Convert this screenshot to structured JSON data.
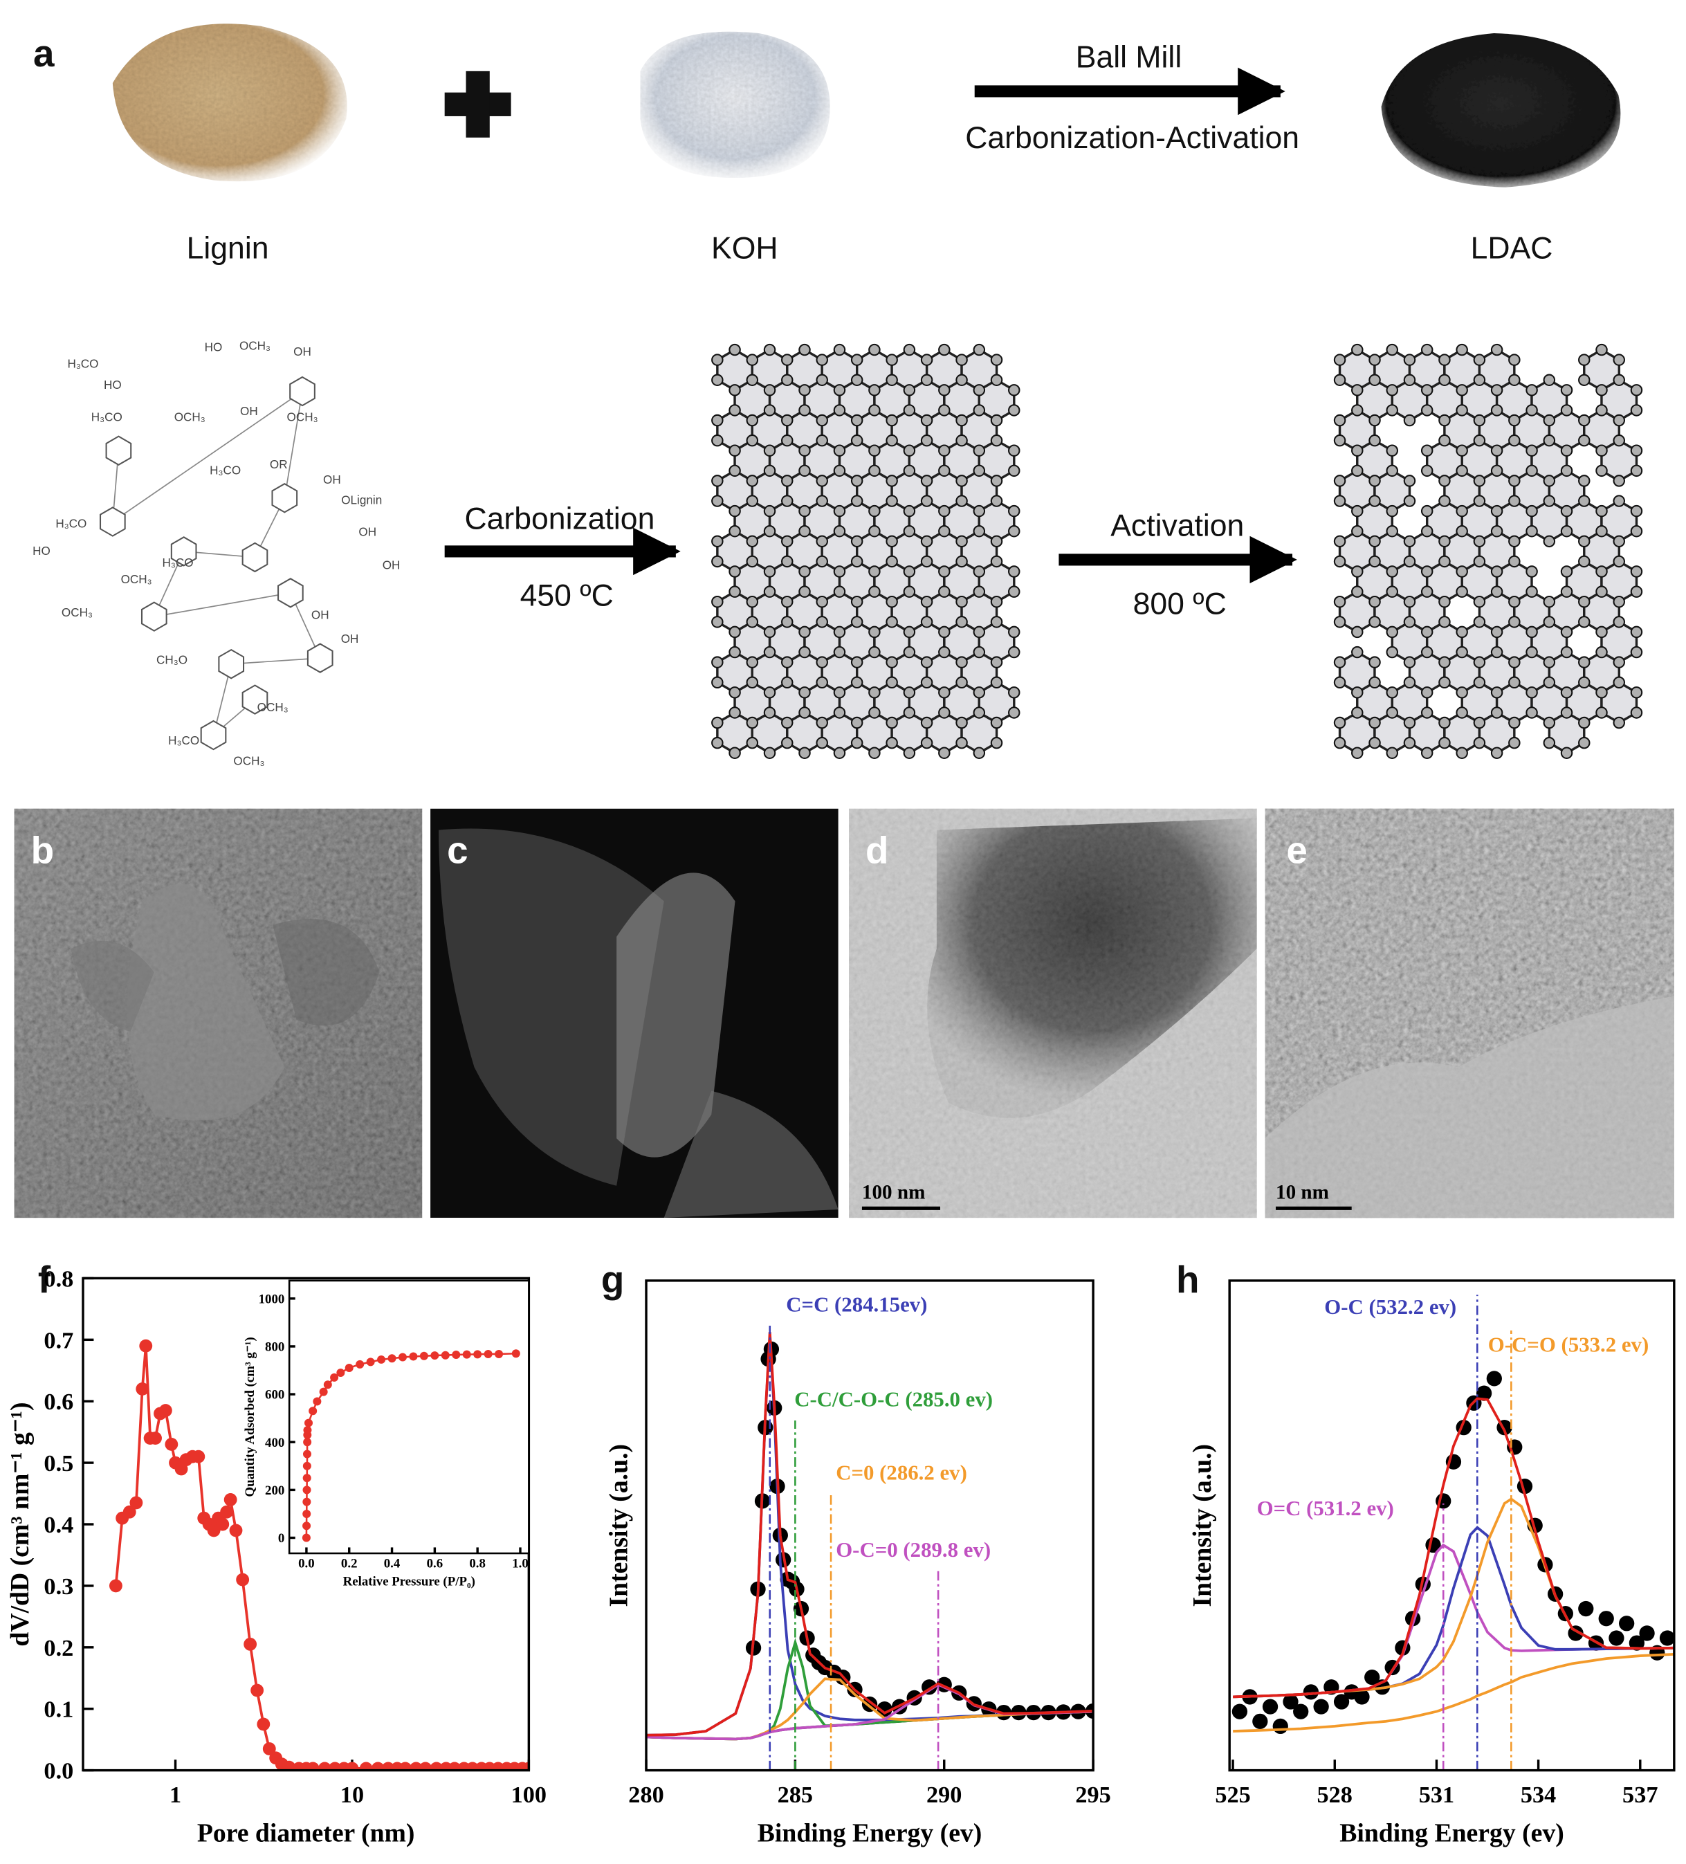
{
  "panel_labels": [
    "a",
    "b",
    "c",
    "d",
    "e",
    "f",
    "g",
    "h"
  ],
  "scheme": {
    "materials": [
      "Lignin",
      "KOH",
      "LDAC"
    ],
    "mill_top": "Ball Mill",
    "mill_bottom": "Carbonization-Activation",
    "carbonization_top": "Carbonization",
    "carbonization_bottom": "450 ºC",
    "activation_top": "Activation",
    "activation_bottom": "800 ºC"
  },
  "lignin_groups": [
    "H₃CO",
    "OCH₃",
    "HO",
    "HO",
    "H₃CO",
    "OH",
    "OCH₃",
    "OH",
    "OCH₃",
    "OR",
    "H₃CO",
    "OH",
    "OLignin",
    "H₃CO",
    "OH",
    "HO",
    "OH",
    "OCH₃",
    "H₃CO",
    "OCH₃",
    "OH",
    "OH",
    "CH₃O",
    "OCH₃",
    "H₃CO",
    "OCH₃"
  ],
  "scale_bars": [
    "100 nm",
    "10 nm"
  ],
  "chart_data": [
    {
      "type": "line",
      "log_x": true,
      "marker": true,
      "xlabel": "Pore diameter (nm)",
      "ylabel": "dV/dD (cm³ nm⁻¹ g⁻¹)",
      "xlim": [
        0.3,
        100
      ],
      "ylim": [
        0,
        0.8
      ],
      "xticks": [
        1,
        10,
        100
      ],
      "yticks": [
        {
          "value": 0,
          "label": "0.0"
        },
        0.1,
        0.2,
        0.3,
        0.4,
        0.5,
        0.6,
        0.7,
        0.8
      ],
      "x": [
        0.46,
        0.5,
        0.55,
        0.6,
        0.65,
        0.68,
        0.72,
        0.77,
        0.82,
        0.88,
        0.95,
        1.0,
        1.08,
        1.15,
        1.25,
        1.35,
        1.45,
        1.55,
        1.65,
        1.75,
        1.85,
        1.95,
        2.05,
        2.2,
        2.4,
        2.65,
        2.9,
        3.15,
        3.4,
        3.7,
        4.0,
        4.4,
        5,
        5.5,
        6,
        7,
        8,
        9,
        10,
        12,
        14,
        16,
        18,
        20,
        23,
        26,
        30,
        34,
        38,
        43,
        48,
        54,
        60,
        67,
        75,
        83,
        92,
        100
      ],
      "series": [
        {
          "color": "#e8332a",
          "values": [
            0.3,
            0.41,
            0.42,
            0.435,
            0.62,
            0.69,
            0.54,
            0.54,
            0.58,
            0.585,
            0.53,
            0.5,
            0.49,
            0.505,
            0.51,
            0.51,
            0.41,
            0.4,
            0.39,
            0.41,
            0.4,
            0.42,
            0.44,
            0.39,
            0.31,
            0.205,
            0.13,
            0.075,
            0.035,
            0.02,
            0.01,
            0.005,
            0.003,
            0.003,
            0.003,
            0.003,
            0.003,
            0.003,
            0.003,
            0.003,
            0.003,
            0.003,
            0.003,
            0.003,
            0.003,
            0.003,
            0.003,
            0.003,
            0.003,
            0.003,
            0.003,
            0.003,
            0.003,
            0.003,
            0.003,
            0.003,
            0.003,
            0.003
          ]
        }
      ]
    },
    {
      "type": "line",
      "marker": true,
      "xlabel": "Relative Pressure (P/P₀)",
      "ylabel": "Quantity Adsorbed (cm³ g⁻¹)",
      "xlim": [
        -0.08,
        1.04
      ],
      "ylim": [
        -65,
        1075
      ],
      "xticks": [
        {
          "value": 0,
          "label": "0.0"
        },
        0.2,
        0.4,
        0.6,
        0.8,
        {
          "value": 1,
          "label": "1.0"
        }
      ],
      "yticks": [
        0,
        200,
        400,
        600,
        800,
        1000
      ],
      "x": [
        0,
        0.0005,
        0.001,
        0.0015,
        0.002,
        0.0025,
        0.003,
        0.0035,
        0.004,
        0.0045,
        0.005,
        0.01,
        0.03,
        0.05,
        0.08,
        0.1,
        0.13,
        0.16,
        0.2,
        0.25,
        0.3,
        0.35,
        0.4,
        0.45,
        0.5,
        0.55,
        0.6,
        0.65,
        0.7,
        0.75,
        0.8,
        0.85,
        0.9,
        0.98
      ],
      "series": [
        {
          "color": "#e8332a",
          "values": [
            0,
            50,
            100,
            150,
            200,
            250,
            300,
            350,
            400,
            430,
            450,
            480,
            530,
            570,
            610,
            640,
            670,
            690,
            710,
            725,
            735,
            745,
            750,
            755,
            758,
            760,
            762,
            763,
            765,
            766,
            767,
            768,
            768,
            770
          ]
        }
      ]
    },
    {
      "type": "xps",
      "xlabel": "Binding Energy (ev)",
      "ylabel": "Intensity (a.u.)",
      "xlim": [
        280,
        295
      ],
      "ylim": [
        0,
        1
      ],
      "xticks": [
        280,
        285,
        290,
        295
      ],
      "x": [
        280,
        281,
        282,
        283,
        283.5,
        283.75,
        284,
        284.15,
        284.3,
        284.5,
        284.75,
        285,
        285.25,
        285.5,
        286,
        286.5,
        287,
        288,
        289,
        289.8,
        290.5,
        291,
        292,
        293,
        294,
        295
      ],
      "series": [
        {
          "color": "#000000",
          "marker": true,
          "line": false,
          "x": [
            283.6,
            283.75,
            283.9,
            284,
            284.1,
            284.2,
            284.3,
            284.4,
            284.5,
            284.6,
            284.75,
            284.9,
            285.05,
            285.2,
            285.4,
            285.6,
            285.8,
            286,
            286.3,
            286.6,
            287,
            287.5,
            288,
            288.5,
            289,
            289.5,
            290,
            290.5,
            291,
            291.5,
            292,
            292.5,
            293,
            293.5,
            294,
            294.5,
            295
          ],
          "values": [
            0.25,
            0.37,
            0.55,
            0.7,
            0.84,
            0.86,
            0.74,
            0.58,
            0.48,
            0.43,
            0.39,
            0.385,
            0.37,
            0.33,
            0.27,
            0.235,
            0.22,
            0.21,
            0.2,
            0.19,
            0.165,
            0.135,
            0.125,
            0.13,
            0.148,
            0.17,
            0.175,
            0.158,
            0.136,
            0.125,
            0.118,
            0.118,
            0.118,
            0.118,
            0.119,
            0.12,
            0.121
          ]
        },
        {
          "color": "#1c1c3c",
          "values": [
            0.068,
            0.066,
            0.065,
            0.064,
            0.066,
            0.07,
            0.075,
            0.078,
            0.08,
            0.082,
            0.084,
            0.086,
            0.087,
            0.088,
            0.09,
            0.092,
            0.094,
            0.098,
            0.102,
            0.105,
            0.108,
            0.11,
            0.113,
            0.116,
            0.118,
            0.12
          ]
        },
        {
          "name": "C=C (284.15ev)",
          "color": "#3b3fb5",
          "center": 284.15,
          "values": [
            0.072,
            0.073,
            0.08,
            0.116,
            0.208,
            0.361,
            0.723,
            0.888,
            0.728,
            0.425,
            0.246,
            0.176,
            0.143,
            0.126,
            0.111,
            0.105,
            0.103,
            0.103,
            0.105,
            0.107,
            0.11,
            0.111,
            0.114,
            0.117,
            0.119,
            0.121
          ]
        },
        {
          "name": "C-C/C-O-C (285.0 ev)",
          "color": "#2f9e3a",
          "center": 285.0,
          "values": [
            0.068,
            0.066,
            0.065,
            0.064,
            0.066,
            0.07,
            0.076,
            0.081,
            0.092,
            0.126,
            0.208,
            0.261,
            0.211,
            0.132,
            0.091,
            0.092,
            0.094,
            0.098,
            0.102,
            0.105,
            0.108,
            0.11,
            0.113,
            0.116,
            0.118,
            0.12
          ]
        },
        {
          "name": "C=0 (286.2 ev)",
          "color": "#f39a2a",
          "center": 286.2,
          "values": [
            0.068,
            0.066,
            0.065,
            0.064,
            0.066,
            0.071,
            0.077,
            0.082,
            0.086,
            0.092,
            0.103,
            0.119,
            0.136,
            0.156,
            0.187,
            0.185,
            0.155,
            0.106,
            0.102,
            0.105,
            0.108,
            0.11,
            0.113,
            0.116,
            0.118,
            0.12
          ]
        },
        {
          "name": "O-C=0 (289.8 ev)",
          "color": "#c050c0",
          "center": 289.8,
          "values": [
            0.068,
            0.066,
            0.065,
            0.064,
            0.066,
            0.07,
            0.075,
            0.078,
            0.08,
            0.082,
            0.084,
            0.086,
            0.087,
            0.088,
            0.09,
            0.092,
            0.094,
            0.104,
            0.144,
            0.175,
            0.156,
            0.133,
            0.115,
            0.116,
            0.118,
            0.12
          ]
        },
        {
          "color": "#e0201b",
          "values": [
            0.072,
            0.073,
            0.08,
            0.116,
            0.208,
            0.362,
            0.726,
            0.895,
            0.746,
            0.479,
            0.389,
            0.384,
            0.316,
            0.238,
            0.209,
            0.198,
            0.164,
            0.117,
            0.147,
            0.177,
            0.158,
            0.134,
            0.116,
            0.117,
            0.119,
            0.121
          ]
        }
      ]
    },
    {
      "type": "xps",
      "xlabel": "Binding Energy (ev)",
      "ylabel": "Intensity (a.u.)",
      "xlim": [
        524.9,
        538
      ],
      "ylim": [
        0,
        1
      ],
      "xticks": [
        525,
        528,
        531,
        534,
        537
      ],
      "x": [
        525,
        526,
        527,
        528,
        529,
        529.5,
        530,
        530.5,
        531,
        531.2,
        531.5,
        532,
        532.2,
        532.5,
        533,
        533.2,
        533.5,
        534,
        534.5,
        535,
        536,
        537,
        538
      ],
      "series": [
        {
          "color": "#000000",
          "marker": true,
          "line": false,
          "x": [
            525.2,
            525.5,
            525.8,
            526.1,
            526.4,
            526.7,
            527,
            527.3,
            527.6,
            527.9,
            528.2,
            528.5,
            528.8,
            529.1,
            529.4,
            529.7,
            530,
            530.3,
            530.6,
            530.9,
            531.2,
            531.5,
            531.8,
            532.1,
            532.4,
            532.7,
            533,
            533.3,
            533.6,
            533.9,
            534.2,
            534.5,
            534.8,
            535.1,
            535.4,
            535.7,
            536,
            536.3,
            536.6,
            536.9,
            537.2,
            537.5,
            537.8
          ],
          "values": [
            0.12,
            0.15,
            0.1,
            0.13,
            0.09,
            0.14,
            0.12,
            0.16,
            0.13,
            0.17,
            0.14,
            0.16,
            0.15,
            0.19,
            0.17,
            0.21,
            0.25,
            0.31,
            0.38,
            0.46,
            0.55,
            0.63,
            0.7,
            0.75,
            0.77,
            0.8,
            0.7,
            0.66,
            0.58,
            0.5,
            0.42,
            0.36,
            0.32,
            0.28,
            0.33,
            0.26,
            0.31,
            0.27,
            0.3,
            0.26,
            0.28,
            0.24,
            0.27
          ]
        },
        {
          "color": "#f39a2a",
          "values": [
            0.08,
            0.082,
            0.085,
            0.09,
            0.097,
            0.1,
            0.105,
            0.112,
            0.12,
            0.125,
            0.132,
            0.145,
            0.152,
            0.16,
            0.175,
            0.18,
            0.19,
            0.2,
            0.21,
            0.218,
            0.228,
            0.234,
            0.237
          ]
        },
        {
          "name": "O=C (531.2 ev)",
          "color": "#c050c0",
          "center": 531.2,
          "values": [
            0.15,
            0.152,
            0.155,
            0.16,
            0.167,
            0.183,
            0.235,
            0.341,
            0.445,
            0.46,
            0.447,
            0.36,
            0.323,
            0.282,
            0.25,
            0.245,
            0.244,
            0.245,
            0.246,
            0.247,
            0.248,
            0.249,
            0.25
          ]
        },
        {
          "name": "O-C (532.2 ev)",
          "color": "#3b3fb5",
          "center": 532.2,
          "values": [
            0.15,
            0.152,
            0.155,
            0.16,
            0.165,
            0.169,
            0.177,
            0.197,
            0.256,
            0.296,
            0.372,
            0.481,
            0.496,
            0.479,
            0.379,
            0.337,
            0.291,
            0.255,
            0.247,
            0.247,
            0.248,
            0.249,
            0.25
          ]
        },
        {
          "name": "O-C=O (533.2 ev)",
          "color": "#f39a2a",
          "center": 533.2,
          "values": [
            0.15,
            0.152,
            0.155,
            0.16,
            0.165,
            0.169,
            0.176,
            0.187,
            0.211,
            0.226,
            0.263,
            0.354,
            0.398,
            0.466,
            0.545,
            0.554,
            0.539,
            0.456,
            0.356,
            0.289,
            0.2505,
            0.249,
            0.25
          ]
        },
        {
          "color": "#e0201b",
          "values": [
            0.15,
            0.152,
            0.155,
            0.16,
            0.167,
            0.183,
            0.238,
            0.359,
            0.522,
            0.582,
            0.662,
            0.745,
            0.759,
            0.757,
            0.694,
            0.654,
            0.588,
            0.466,
            0.357,
            0.289,
            0.2505,
            0.249,
            0.25
          ]
        }
      ]
    }
  ]
}
